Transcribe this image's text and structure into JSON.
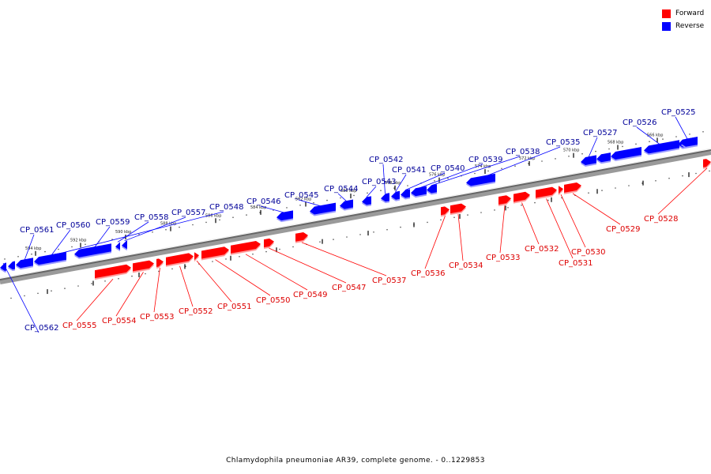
{
  "caption": "Chlamydophila pneumoniae AR39, complete genome. - 0..1229853",
  "legend": [
    {
      "label": "Forward",
      "color": "#ff0000"
    },
    {
      "label": "Reverse",
      "color": "#0000ff"
    }
  ],
  "colors": {
    "forward": "#ff0000",
    "reverse": "#0000ff",
    "forward_label": "#dd0000",
    "reverse_label": "#000099",
    "backbone": "#888888"
  },
  "scale": {
    "unit": "kbp",
    "ticks": [
      {
        "kbp": 566,
        "label": "566 kbp"
      },
      {
        "kbp": 568,
        "label": "568 kbp"
      },
      {
        "kbp": 570,
        "label": "570 kbp"
      },
      {
        "kbp": 572,
        "label": "572 kbp"
      },
      {
        "kbp": 574,
        "label": "574 kbp"
      },
      {
        "kbp": 576,
        "label": "576 kbp"
      },
      {
        "kbp": 578,
        "label": "578 kbp"
      },
      {
        "kbp": 580,
        "label": "580 kbp"
      },
      {
        "kbp": 582,
        "label": "582 kbp"
      },
      {
        "kbp": 584,
        "label": "584 kbp"
      },
      {
        "kbp": 586,
        "label": "586 kbp"
      },
      {
        "kbp": 588,
        "label": "588 kbp"
      },
      {
        "kbp": 590,
        "label": "590 kbp"
      },
      {
        "kbp": 592,
        "label": "592 kbp"
      },
      {
        "kbp": 594,
        "label": "594 kbp"
      }
    ]
  },
  "genes": [
    {
      "name": "CP_0525",
      "strand": "reverse"
    },
    {
      "name": "CP_0526",
      "strand": "reverse"
    },
    {
      "name": "CP_0527",
      "strand": "reverse"
    },
    {
      "name": "CP_0528",
      "strand": "forward"
    },
    {
      "name": "CP_0529",
      "strand": "forward"
    },
    {
      "name": "CP_0530",
      "strand": "forward"
    },
    {
      "name": "CP_0531",
      "strand": "forward"
    },
    {
      "name": "CP_0532",
      "strand": "forward"
    },
    {
      "name": "CP_0533",
      "strand": "forward"
    },
    {
      "name": "CP_0534",
      "strand": "forward"
    },
    {
      "name": "CP_0535",
      "strand": "reverse"
    },
    {
      "name": "CP_0536",
      "strand": "forward"
    },
    {
      "name": "CP_0537",
      "strand": "forward"
    },
    {
      "name": "CP_0538",
      "strand": "reverse"
    },
    {
      "name": "CP_0539",
      "strand": "reverse"
    },
    {
      "name": "CP_0540",
      "strand": "reverse"
    },
    {
      "name": "CP_0541",
      "strand": "reverse"
    },
    {
      "name": "CP_0542",
      "strand": "reverse"
    },
    {
      "name": "CP_0543",
      "strand": "reverse"
    },
    {
      "name": "CP_0544",
      "strand": "reverse"
    },
    {
      "name": "CP_0545",
      "strand": "reverse"
    },
    {
      "name": "CP_0546",
      "strand": "reverse"
    },
    {
      "name": "CP_0547",
      "strand": "forward"
    },
    {
      "name": "CP_0548",
      "strand": "reverse"
    },
    {
      "name": "CP_0549",
      "strand": "forward"
    },
    {
      "name": "CP_0550",
      "strand": "forward"
    },
    {
      "name": "CP_0551",
      "strand": "forward"
    },
    {
      "name": "CP_0552",
      "strand": "forward"
    },
    {
      "name": "CP_0553",
      "strand": "forward"
    },
    {
      "name": "CP_0554",
      "strand": "forward"
    },
    {
      "name": "CP_0555",
      "strand": "forward"
    },
    {
      "name": "CP_0557",
      "strand": "reverse"
    },
    {
      "name": "CP_0558",
      "strand": "reverse"
    },
    {
      "name": "CP_0559",
      "strand": "reverse"
    },
    {
      "name": "CP_0560",
      "strand": "reverse"
    },
    {
      "name": "CP_0561",
      "strand": "reverse"
    },
    {
      "name": "CP_0562",
      "strand": "reverse"
    }
  ]
}
